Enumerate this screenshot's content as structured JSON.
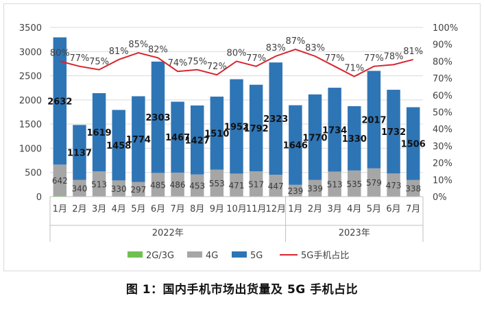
{
  "caption": "图 1：国内手机市场出货量及 5G 手机占比",
  "colors": {
    "g2g3g": "#70c050",
    "g4g": "#a6a6a6",
    "g5g": "#2e75b6",
    "share_line": "#d9232d",
    "axis_text": "#404040",
    "grid": "#d9d9d9"
  },
  "chart_data": {
    "type": "bar",
    "stacked": true,
    "categories": [
      "1月",
      "2月",
      "3月",
      "4月",
      "5月",
      "6月",
      "7月",
      "8月",
      "9月",
      "10月",
      "11月",
      "12月",
      "1月",
      "2月",
      "3月",
      "4月",
      "5月",
      "6月",
      "7月"
    ],
    "groups": [
      {
        "label": "2022年",
        "start": 0,
        "end": 11
      },
      {
        "label": "2023年",
        "start": 12,
        "end": 18
      }
    ],
    "series": [
      {
        "name": "2G/3G",
        "color": "#70c050",
        "values": [
          20,
          5,
          8,
          5,
          5,
          5,
          10,
          5,
          5,
          5,
          5,
          5,
          5,
          5,
          5,
          5,
          5,
          5,
          5
        ]
      },
      {
        "name": "4G",
        "color": "#a6a6a6",
        "values": [
          642,
          340,
          513,
          330,
          297,
          485,
          486,
          453,
          553,
          471,
          517,
          447,
          239,
          339,
          513,
          535,
          579,
          473,
          338
        ]
      },
      {
        "name": "5G",
        "color": "#2e75b6",
        "values": [
          2632,
          1137,
          1619,
          1458,
          1774,
          2303,
          1467,
          1427,
          1510,
          1952,
          1792,
          2323,
          1646,
          1770,
          1734,
          1330,
          2017,
          1732,
          1506
        ]
      }
    ],
    "line_series": {
      "name": "5G手机占比",
      "color": "#d9232d",
      "axis": "right",
      "values": [
        80,
        77,
        75,
        81,
        85,
        82,
        74,
        75,
        72,
        80,
        77,
        83,
        87,
        83,
        77,
        71,
        77,
        78,
        81
      ],
      "labels": [
        "80%",
        "77%",
        "75%",
        "81%",
        "85%",
        "82%",
        "74%",
        "75%",
        "72%",
        "80%",
        "77%",
        "83%",
        "87%",
        "83%",
        "77%",
        "71%",
        "77%",
        "78%",
        "81%"
      ]
    },
    "y_left": {
      "min": 0,
      "max": 3500,
      "ticks": [
        "0",
        "500",
        "1000",
        "1500",
        "2000",
        "2500",
        "3000",
        "3500"
      ]
    },
    "y_right": {
      "min": 0,
      "max": 100,
      "ticks": [
        "0%",
        "10%",
        "20%",
        "30%",
        "40%",
        "50%",
        "60%",
        "70%",
        "80%",
        "90%",
        "100%"
      ]
    },
    "legend": {
      "position": "bottom",
      "entries": [
        "2G/3G",
        "4G",
        "5G",
        "5G手机占比"
      ]
    },
    "grid": true
  }
}
